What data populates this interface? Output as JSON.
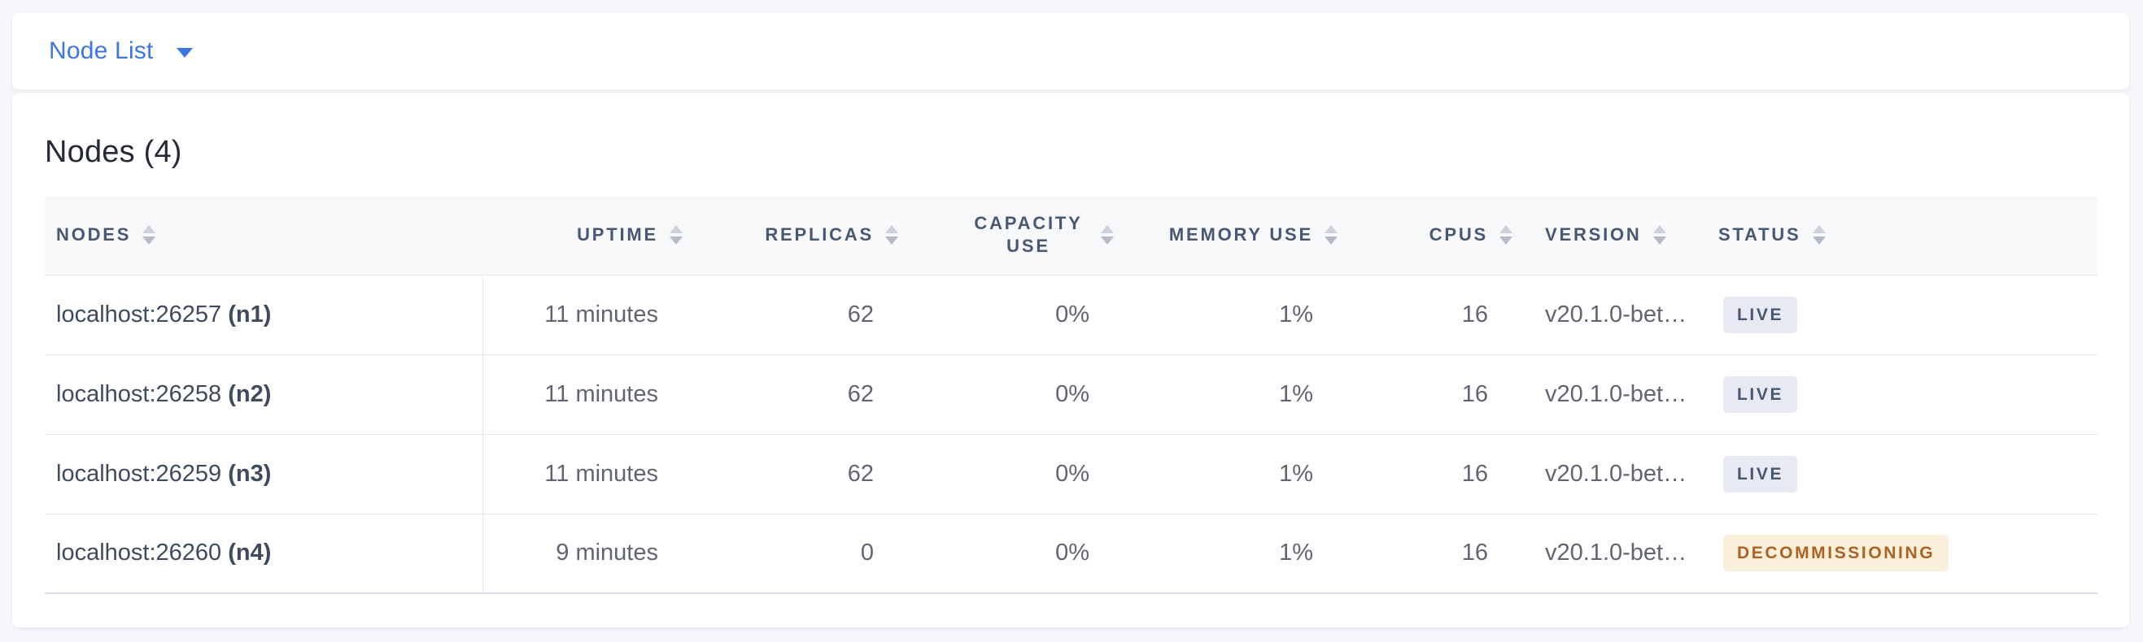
{
  "page": {
    "background": "#f4f6fa",
    "title": "Nodes (4)"
  },
  "selector": {
    "label": "Node List",
    "icon": "caret-down-icon"
  },
  "icons": {
    "selector_caret": "caret-down-icon",
    "column_sort": "sort-arrows-icon"
  },
  "colors": {
    "accent_blue": "#3a76e8",
    "header_text": "#475872",
    "cell_text": "#606571",
    "node_text": "#3e4a5e",
    "live_badge_bg": "#e7eaf2",
    "live_badge_text": "#475872",
    "decommissioning_badge_bg": "#f9efdb",
    "decommissioning_badge_text": "#ad6221"
  },
  "table": {
    "columns": [
      {
        "key": "nodes",
        "label": "NODES",
        "align": "left"
      },
      {
        "key": "uptime",
        "label": "UPTIME",
        "align": "right"
      },
      {
        "key": "replicas",
        "label": "REPLICAS",
        "align": "right"
      },
      {
        "key": "capacity_use",
        "label": "CAPACITY USE",
        "align": "right"
      },
      {
        "key": "memory_use",
        "label": "MEMORY USE",
        "align": "right"
      },
      {
        "key": "cpus",
        "label": "CPUS",
        "align": "right"
      },
      {
        "key": "version",
        "label": "VERSION",
        "align": "left"
      },
      {
        "key": "status",
        "label": "STATUS",
        "align": "left"
      }
    ],
    "rows": [
      {
        "address": "localhost:26257",
        "node_id": "(n1)",
        "uptime": "11 minutes",
        "replicas": "62",
        "capacity_use": "0%",
        "memory_use": "1%",
        "cpus": "16",
        "version": "v20.1.0-bet…",
        "status": "LIVE",
        "status_type": "live"
      },
      {
        "address": "localhost:26258",
        "node_id": "(n2)",
        "uptime": "11 minutes",
        "replicas": "62",
        "capacity_use": "0%",
        "memory_use": "1%",
        "cpus": "16",
        "version": "v20.1.0-bet…",
        "status": "LIVE",
        "status_type": "live"
      },
      {
        "address": "localhost:26259",
        "node_id": "(n3)",
        "uptime": "11 minutes",
        "replicas": "62",
        "capacity_use": "0%",
        "memory_use": "1%",
        "cpus": "16",
        "version": "v20.1.0-bet…",
        "status": "LIVE",
        "status_type": "live"
      },
      {
        "address": "localhost:26260",
        "node_id": "(n4)",
        "uptime": "9 minutes",
        "replicas": "0",
        "capacity_use": "0%",
        "memory_use": "1%",
        "cpus": "16",
        "version": "v20.1.0-bet…",
        "status": "DECOMMISSIONING",
        "status_type": "decommissioning"
      }
    ]
  }
}
